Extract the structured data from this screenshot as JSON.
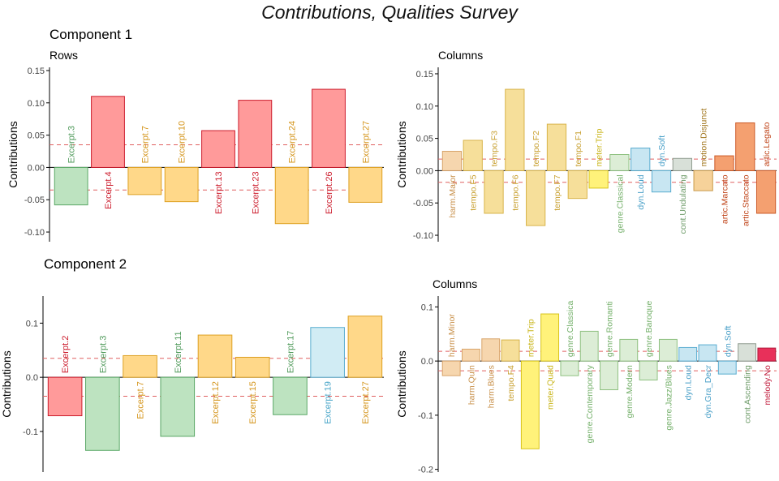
{
  "title": "Contributions, Qualities Survey",
  "components": [
    {
      "title": "Component 1"
    },
    {
      "title": "Component 2"
    }
  ],
  "colors": {
    "green": {
      "fill": "#bde3c0",
      "stroke": "#5aa866",
      "text": "#4f9a5a"
    },
    "red": {
      "fill": "#ff9a9a",
      "stroke": "#cc1c2c",
      "text": "#cc1c2c"
    },
    "orange": {
      "fill": "#ffd889",
      "stroke": "#dda022",
      "text": "#d4941a"
    },
    "blue": {
      "fill": "#d1ecf4",
      "stroke": "#5aaed0",
      "text": "#4aa6c8"
    },
    "harm": {
      "fill": "#f6d6ae",
      "stroke": "#d8a46a",
      "text": "#c8904a"
    },
    "tempo": {
      "fill": "#f6df9a",
      "stroke": "#d8b44a",
      "text": "#c8a030"
    },
    "meter": {
      "fill": "#fff27a",
      "stroke": "#d8c41a",
      "text": "#c8b418"
    },
    "genre": {
      "fill": "#dcedd6",
      "stroke": "#8ec080",
      "text": "#74b06a"
    },
    "dyn": {
      "fill": "#c8e6f2",
      "stroke": "#58acd0",
      "text": "#4aa0c8"
    },
    "cont": {
      "fill": "#d8e0d8",
      "stroke": "#909c90",
      "text": "#6f9c6a"
    },
    "motion": {
      "fill": "#f6d29a",
      "stroke": "#c89a4a",
      "text": "#a0741a"
    },
    "artic": {
      "fill": "#f4a070",
      "stroke": "#cc5a28",
      "text": "#c0451a"
    },
    "melody": {
      "fill": "#e8305a",
      "stroke": "#b01a3a",
      "text": "#c01a3a"
    },
    "threshold": "#e06060",
    "axis": "#000000"
  },
  "chart_data": [
    {
      "type": "bar",
      "subtitle": "Rows",
      "ylabel": "Contributions",
      "ylim": [
        -0.115,
        0.155
      ],
      "yticks": [
        "-0.10",
        "-0.05",
        "0.00",
        "0.05",
        "0.10",
        "0.15"
      ],
      "thresholds": [
        0.035,
        -0.035
      ],
      "categories": [
        "Excerpt.3",
        "Excerpt.4",
        "Excerpt.7",
        "Excerpt.10",
        "Excerpt.13",
        "Excerpt.23",
        "Excerpt.24",
        "Excerpt.26",
        "Excerpt.27"
      ],
      "values": [
        -0.058,
        0.11,
        -0.042,
        -0.053,
        0.057,
        0.104,
        -0.087,
        0.121,
        -0.054
      ],
      "groups": [
        "green",
        "red",
        "orange",
        "orange",
        "red",
        "red",
        "orange",
        "red",
        "orange"
      ]
    },
    {
      "type": "bar",
      "subtitle": "Columns",
      "ylabel": "Contributions",
      "ylim": [
        -0.11,
        0.16
      ],
      "yticks": [
        "-0.10",
        "-0.05",
        "0.00",
        "0.05",
        "0.10",
        "0.15"
      ],
      "thresholds": [
        0.018,
        -0.018
      ],
      "categories": [
        "harm.Major",
        "tempo.F5",
        "tempo.F3",
        "tempo.F6",
        "tempo.F2",
        "tempo.F7",
        "tempo.F1",
        "meter.Trip",
        "genre.Classical",
        "dyn.Loud",
        "dyn.Soft",
        "cont.Undulating",
        "motion.Disjunct",
        "artic.Marcato",
        "artic.Staccato",
        "artic.Legato"
      ],
      "values": [
        0.03,
        0.047,
        -0.066,
        0.126,
        -0.085,
        0.072,
        -0.043,
        -0.027,
        0.025,
        0.035,
        -0.033,
        0.019,
        -0.031,
        0.023,
        0.074,
        -0.066
      ],
      "groups": [
        "harm",
        "tempo",
        "tempo",
        "tempo",
        "tempo",
        "tempo",
        "tempo",
        "meter",
        "genre",
        "dyn",
        "dyn",
        "cont",
        "motion",
        "artic",
        "artic",
        "artic"
      ]
    },
    {
      "type": "bar",
      "subtitle": "",
      "ylabel": "Contributions",
      "ylim": [
        -0.175,
        0.15
      ],
      "yticks": [
        "-0.1",
        "0.0",
        "0.1"
      ],
      "thresholds": [
        0.035,
        -0.035
      ],
      "categories": [
        "Excerpt.2",
        "Excerpt.3",
        "Excerpt.7",
        "Excerpt.11",
        "Excerpt.12",
        "Excerpt.15",
        "Excerpt.17",
        "Excerpt.19",
        "Excerpt.27"
      ],
      "values": [
        -0.071,
        -0.135,
        0.04,
        -0.109,
        0.078,
        0.037,
        -0.069,
        0.092,
        0.113
      ],
      "groups": [
        "red",
        "green",
        "orange",
        "green",
        "orange",
        "orange",
        "green",
        "blue",
        "orange"
      ]
    },
    {
      "type": "bar",
      "subtitle": "Columns",
      "ylabel": "Contributions",
      "ylim": [
        -0.205,
        0.12
      ],
      "yticks": [
        "-0.2",
        "-0.1",
        "0.0",
        "0.1"
      ],
      "thresholds": [
        0.018,
        -0.018
      ],
      "categories": [
        "harm.Minor",
        "harm.Quin",
        "harm.Blues",
        "tempo.F4",
        "meter.Trip",
        "meter.Quad",
        "genre.Classical",
        "genre.Contemporary",
        "genre.Romantic",
        "genre.Modern",
        "genre.Baroque",
        "genre.Jazz/Blues",
        "dyn.Loud",
        "dyn.Gra_Decr",
        "dyn.Soft",
        "cont.Ascending",
        "melody.No"
      ],
      "labels": [
        "harm.Minor",
        "harm.Quin",
        "harm.Blues",
        "tempo.F4",
        "meter.Trip",
        "meter.Quad",
        "genre.Classica",
        "genre.Contemporary",
        "genre.Romanti",
        "genre.Modern",
        "genre.Baroque",
        "genre.Jazz/Blues",
        "dyn.Loud",
        "dyn.Gra_Decr",
        "dyn.Soft",
        "cont.Ascending",
        "melody.No"
      ],
      "values": [
        -0.027,
        0.022,
        0.041,
        0.039,
        -0.162,
        0.087,
        -0.027,
        0.055,
        -0.053,
        0.04,
        -0.035,
        0.04,
        0.025,
        0.03,
        -0.024,
        0.032,
        0.024
      ],
      "groups": [
        "harm",
        "harm",
        "harm",
        "tempo",
        "meter",
        "meter",
        "genre",
        "genre",
        "genre",
        "genre",
        "genre",
        "genre",
        "dyn",
        "dyn",
        "dyn",
        "cont",
        "melody"
      ]
    }
  ]
}
